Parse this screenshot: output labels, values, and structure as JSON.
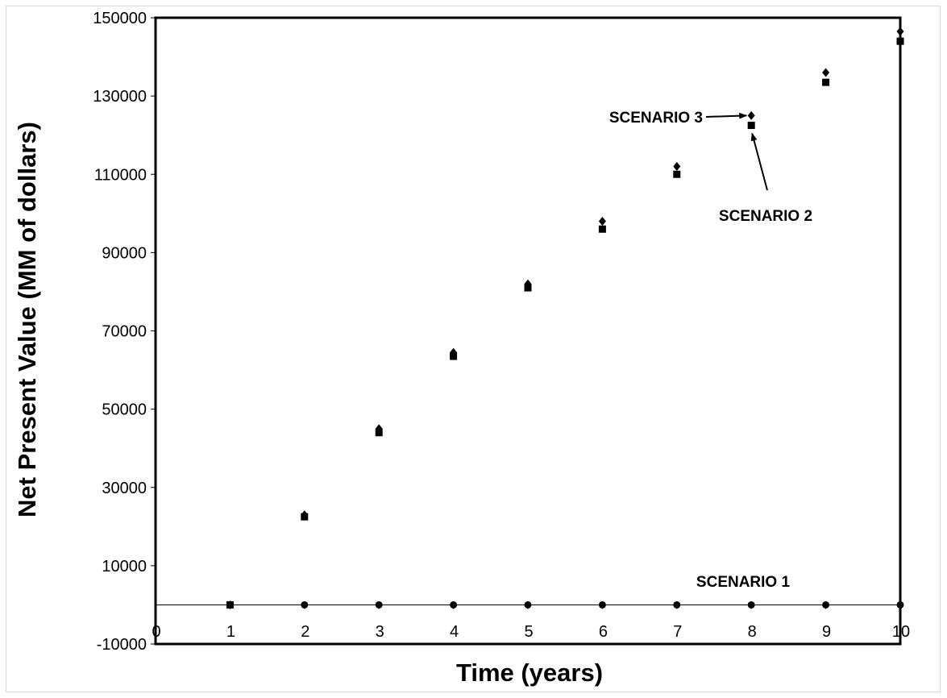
{
  "chart_data": {
    "type": "scatter",
    "xlabel": "Time (years)",
    "ylabel": "Net Present Value (MM of dollars)",
    "xlim": [
      0,
      10
    ],
    "ylim": [
      -10000,
      150000
    ],
    "x_ticks": [
      0,
      1,
      2,
      3,
      4,
      5,
      6,
      7,
      8,
      9,
      10
    ],
    "y_ticks": [
      -10000,
      10000,
      30000,
      50000,
      70000,
      90000,
      110000,
      130000,
      150000
    ],
    "y_tick_labels": [
      "-10000",
      "10000",
      "30000",
      "50000",
      "70000",
      "90000",
      "110000",
      "130000",
      "150000"
    ],
    "grid": false,
    "legend": "none",
    "series": [
      {
        "marker": "circle",
        "x": [
          1,
          2,
          3,
          4,
          5,
          6,
          7,
          8,
          9,
          10
        ],
        "y": [
          0,
          0,
          0,
          0,
          0,
          0,
          0,
          0,
          0,
          0
        ]
      },
      {
        "marker": "square",
        "x": [
          1,
          2,
          3,
          4,
          5,
          6,
          7,
          8,
          9,
          10
        ],
        "y": [
          0,
          22500,
          44000,
          63500,
          81000,
          96000,
          110000,
          122500,
          133500,
          144000
        ]
      },
      {
        "marker": "diamond",
        "x": [
          1,
          2,
          3,
          4,
          5,
          6,
          7,
          8,
          9,
          10
        ],
        "y": [
          0,
          23000,
          45000,
          64500,
          82000,
          98000,
          112000,
          125000,
          136000,
          146500
        ]
      }
    ],
    "annotations": [
      {
        "text": "SCENARIO 1",
        "target_series": 0
      },
      {
        "text": "SCENARIO 2",
        "target_series": 1,
        "target_x": 8
      },
      {
        "text": "SCENARIO 3",
        "target_series": 2,
        "target_x": 8
      }
    ]
  },
  "colors": {
    "marker": "#000000",
    "axis": "#000000",
    "frame": "#d9d9d9"
  }
}
